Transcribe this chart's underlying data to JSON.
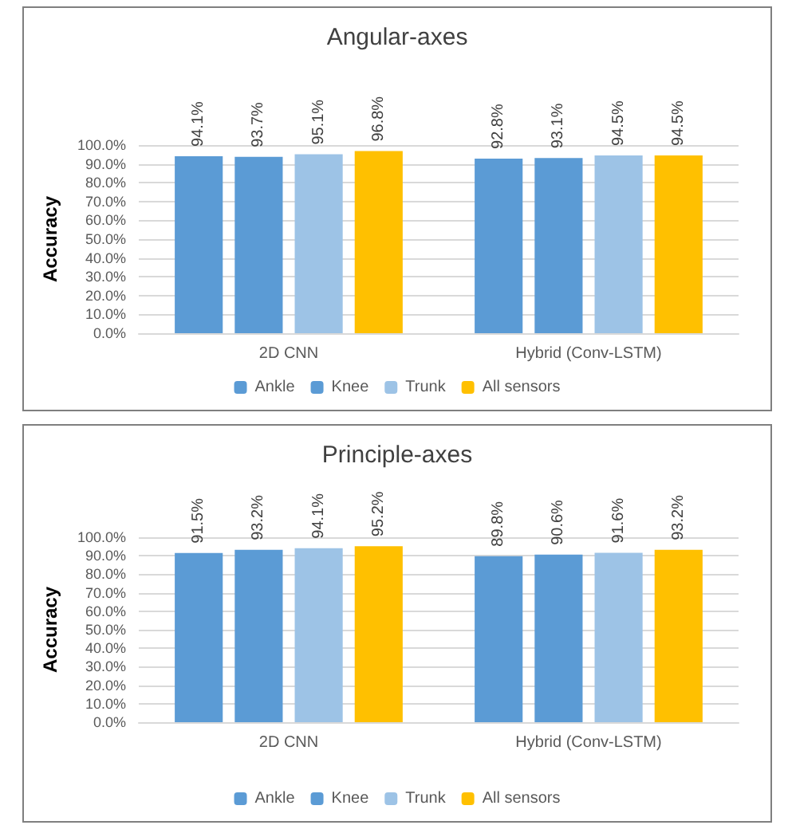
{
  "chart_data": [
    {
      "type": "bar",
      "title": "Angular-axes",
      "ylabel": "Accuracy",
      "categories": [
        "2D CNN",
        "Hybrid (Conv-LSTM)"
      ],
      "ylim": [
        0,
        100
      ],
      "yticks": [
        {
          "value": 0,
          "label": "0.0%"
        },
        {
          "value": 10,
          "label": "10.0%"
        },
        {
          "value": 20,
          "label": "20.0%"
        },
        {
          "value": 30,
          "label": "30.0%"
        },
        {
          "value": 40,
          "label": "40.0%"
        },
        {
          "value": 50,
          "label": "50.0%"
        },
        {
          "value": 60,
          "label": "60.0%"
        },
        {
          "value": 70,
          "label": "70.0%"
        },
        {
          "value": 80,
          "label": "80.0%"
        },
        {
          "value": 90,
          "label": "90.0%"
        },
        {
          "value": 100,
          "label": "100.0%"
        }
      ],
      "grid": "y",
      "legend": "bottom",
      "series": [
        {
          "name": "Ankle",
          "color": "#5b9bd5",
          "values": [
            94.1,
            92.8
          ],
          "value_labels": [
            "94.1%",
            "92.8%"
          ]
        },
        {
          "name": "Knee",
          "color": "#5b9bd5",
          "values": [
            93.7,
            93.1
          ],
          "value_labels": [
            "93.7%",
            "93.1%"
          ]
        },
        {
          "name": "Trunk",
          "color": "#9dc3e6",
          "values": [
            95.1,
            94.5
          ],
          "value_labels": [
            "95.1%",
            "94.5%"
          ]
        },
        {
          "name": "All sensors",
          "color": "#ffc000",
          "values": [
            96.8,
            94.5
          ],
          "value_labels": [
            "96.8%",
            "94.5%"
          ]
        }
      ]
    },
    {
      "type": "bar",
      "title": "Principle-axes",
      "ylabel": "Accuracy",
      "categories": [
        "2D CNN",
        "Hybrid (Conv-LSTM)"
      ],
      "ylim": [
        0,
        100
      ],
      "yticks": [
        {
          "value": 0,
          "label": "0.0%"
        },
        {
          "value": 10,
          "label": "10.0%"
        },
        {
          "value": 20,
          "label": "20.0%"
        },
        {
          "value": 30,
          "label": "30.0%"
        },
        {
          "value": 40,
          "label": "40.0%"
        },
        {
          "value": 50,
          "label": "50.0%"
        },
        {
          "value": 60,
          "label": "60.0%"
        },
        {
          "value": 70,
          "label": "70.0%"
        },
        {
          "value": 80,
          "label": "80.0%"
        },
        {
          "value": 90,
          "label": "90.0%"
        },
        {
          "value": 100,
          "label": "100.0%"
        }
      ],
      "grid": "y",
      "legend": "bottom",
      "series": [
        {
          "name": "Ankle",
          "color": "#5b9bd5",
          "values": [
            91.5,
            89.8
          ],
          "value_labels": [
            "91.5%",
            "89.8%"
          ]
        },
        {
          "name": "Knee",
          "color": "#5b9bd5",
          "values": [
            93.2,
            90.6
          ],
          "value_labels": [
            "93.2%",
            "90.6%"
          ]
        },
        {
          "name": "Trunk",
          "color": "#9dc3e6",
          "values": [
            94.1,
            91.6
          ],
          "value_labels": [
            "94.1%",
            "91.6%"
          ]
        },
        {
          "name": "All sensors",
          "color": "#ffc000",
          "values": [
            95.2,
            93.2
          ],
          "value_labels": [
            "95.2%",
            "93.2%"
          ]
        }
      ]
    }
  ]
}
